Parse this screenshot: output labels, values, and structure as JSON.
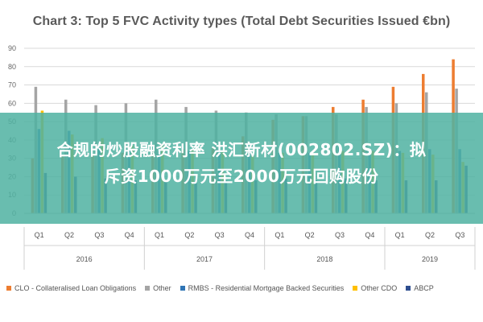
{
  "chart_data": {
    "type": "bar",
    "title": "Chart 3: Top 5 FVC Activity types (Total Debt Securities Issued €bn)",
    "ylim": [
      0,
      90
    ],
    "yticks": [
      0,
      10,
      20,
      30,
      40,
      50,
      60,
      70,
      80,
      90
    ],
    "grid": true,
    "legend_position": "bottom",
    "categories": [
      "Q1",
      "Q2",
      "Q3",
      "Q4",
      "Q1",
      "Q2",
      "Q3",
      "Q4",
      "Q1",
      "Q2",
      "Q3",
      "Q4",
      "Q1",
      "Q2",
      "Q3"
    ],
    "years": [
      {
        "label": "2016",
        "quarters": 4
      },
      {
        "label": "2017",
        "quarters": 4
      },
      {
        "label": "2018",
        "quarters": 4
      },
      {
        "label": "2019",
        "quarters": 3
      }
    ],
    "series": [
      {
        "name": "CLO - Collateralised Loan Obligations",
        "color": "#ed7d31",
        "values": [
          30,
          31,
          32,
          33,
          34,
          35,
          36,
          42,
          51,
          53,
          58,
          62,
          69,
          76,
          84
        ]
      },
      {
        "name": "Other",
        "color": "#a5a5a5",
        "values": [
          69,
          62,
          59,
          60,
          62,
          58,
          56,
          55,
          54,
          53,
          54,
          58,
          60,
          66,
          68
        ]
      },
      {
        "name": "RMBS - Residential Mortgage Backed Securities",
        "color": "#2f75b5",
        "values": [
          46,
          45,
          36,
          35,
          34,
          34,
          35,
          35,
          33,
          33,
          36,
          34,
          34,
          35,
          35
        ]
      },
      {
        "name": "Other CDO",
        "color": "#ffc000",
        "values": [
          56,
          43,
          41,
          37,
          37,
          35,
          34,
          33,
          33,
          33,
          34,
          34,
          33,
          32,
          28
        ]
      },
      {
        "name": "ABCP",
        "color": "#2e4e8f",
        "values": [
          22,
          20,
          19,
          18,
          18,
          17,
          18,
          18,
          19,
          18,
          19,
          18,
          18,
          18,
          26
        ]
      }
    ]
  },
  "overlay": {
    "line1": "合规的炒股融资利率 洪汇新材(002802.SZ)：拟",
    "line2": "斥资1000万元至2000万元回购股份"
  }
}
